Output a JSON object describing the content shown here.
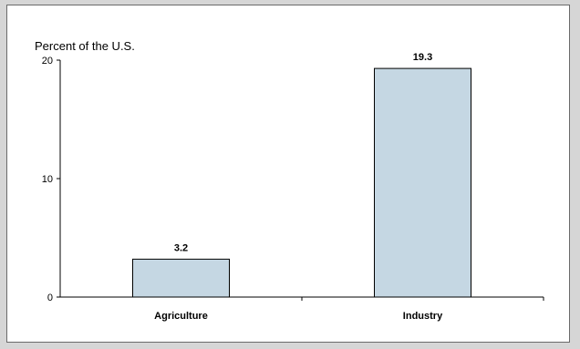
{
  "chart_data": {
    "type": "bar",
    "title": "",
    "ylabel": "Percent of the U.S.",
    "xlabel": "",
    "categories": [
      "Agriculture",
      "Industry"
    ],
    "values": [
      3.2,
      19.3
    ],
    "data_labels": [
      "3.2",
      "19.3"
    ],
    "yticks": [
      0,
      10,
      20
    ],
    "ytick_labels": [
      "0",
      "10",
      "20"
    ],
    "ylim": [
      0,
      20
    ],
    "grid": false,
    "legend": "none",
    "bar_color": "#c5d7e3",
    "bar_edge_color": "#000000"
  }
}
